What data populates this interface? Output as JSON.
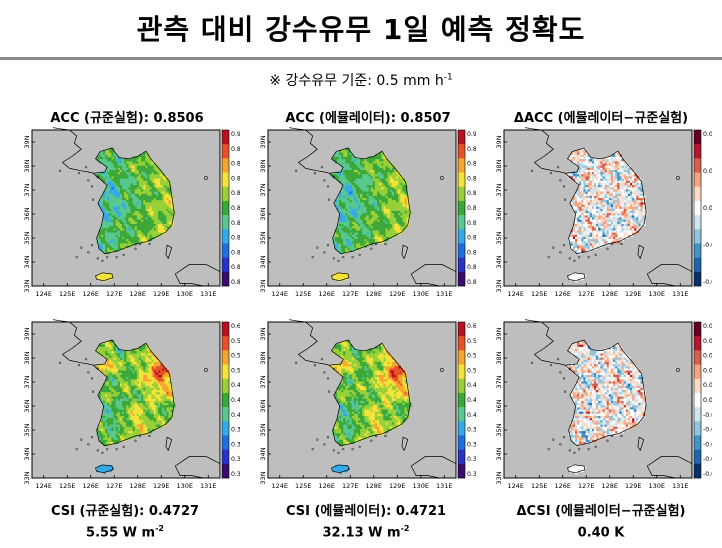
{
  "header": {
    "title": "관측 대비 강수유무 1일 예측 정확도",
    "note_prefix": "※ 강수유무 기준: 0.5 mm h",
    "note_exponent": "-1"
  },
  "colors": {
    "panel_background": "#bebebe",
    "land_outline": "#000000",
    "rule": "#8c8c8c"
  },
  "chart_data": [
    {
      "type": "heatmap",
      "id": "acc-control",
      "title": "ACC (규준실험): 0.8506",
      "metric": "ACC",
      "score": 0.8506,
      "x_ticks": [
        "124E",
        "125E",
        "126E",
        "127E",
        "128E",
        "129E",
        "130E",
        "131E"
      ],
      "y_ticks": [
        "33N",
        "34N",
        "35N",
        "36N",
        "37N",
        "38N",
        "39N"
      ],
      "colorbar": {
        "ticks": [
          "0.90",
          "0.89",
          "0.88",
          "0.87",
          "0.86",
          "0.85",
          "0.84",
          "0.83",
          "0.82",
          "0.81",
          "0.80"
        ],
        "min": 0.8,
        "max": 0.9,
        "palette": "rainbow"
      }
    },
    {
      "type": "heatmap",
      "id": "acc-emulator",
      "title": "ACC (에뮬레이터): 0.8507",
      "metric": "ACC",
      "score": 0.8507,
      "x_ticks": [
        "124E",
        "125E",
        "126E",
        "127E",
        "128E",
        "129E",
        "130E",
        "131E"
      ],
      "y_ticks": [
        "33N",
        "34N",
        "35N",
        "36N",
        "37N",
        "38N",
        "39N"
      ],
      "colorbar": {
        "ticks": [
          "0.90",
          "0.89",
          "0.88",
          "0.87",
          "0.86",
          "0.85",
          "0.84",
          "0.83",
          "0.82",
          "0.81",
          "0.80"
        ],
        "min": 0.8,
        "max": 0.9,
        "palette": "rainbow"
      }
    },
    {
      "type": "heatmap",
      "id": "acc-diff",
      "title": "ΔACC (에뮬레이터−규준실험)",
      "metric": "ΔACC",
      "x_ticks": [
        "124E",
        "125E",
        "126E",
        "127E",
        "128E",
        "129E",
        "130E",
        "131E"
      ],
      "y_ticks": [
        "33N",
        "34N",
        "35N",
        "36N",
        "37N",
        "38N",
        "39N"
      ],
      "colorbar": {
        "ticks": [
          "0.02",
          "0.01",
          "0.00",
          "-0.01",
          "-0.02"
        ],
        "min": -0.02,
        "max": 0.02,
        "palette": "diverging"
      }
    },
    {
      "type": "heatmap",
      "id": "csi-control",
      "title": "CSI (규준실험): 0.4727",
      "metric": "CSI",
      "score": 0.4727,
      "x_ticks": [
        "124E",
        "125E",
        "126E",
        "127E",
        "128E",
        "129E",
        "130E",
        "131E"
      ],
      "y_ticks": [
        "33N",
        "34N",
        "35N",
        "36N",
        "37N",
        "38N",
        "39N"
      ],
      "colorbar": {
        "ticks": [
          "0.60",
          "0.57",
          "0.54",
          "0.51",
          "0.48",
          "0.45",
          "0.42",
          "0.39",
          "0.36",
          "0.33",
          "0.30"
        ],
        "min": 0.3,
        "max": 0.6,
        "palette": "rainbow"
      }
    },
    {
      "type": "heatmap",
      "id": "csi-emulator",
      "title": "CSI (에뮬레이터): 0.4721",
      "metric": "CSI",
      "score": 0.4721,
      "x_ticks": [
        "124E",
        "125E",
        "126E",
        "127E",
        "128E",
        "129E",
        "130E",
        "131E"
      ],
      "y_ticks": [
        "33N",
        "34N",
        "35N",
        "36N",
        "37N",
        "38N",
        "39N"
      ],
      "colorbar": {
        "ticks": [
          "0.60",
          "0.57",
          "0.54",
          "0.51",
          "0.48",
          "0.45",
          "0.42",
          "0.39",
          "0.36",
          "0.33",
          "0.30"
        ],
        "min": 0.3,
        "max": 0.6,
        "palette": "rainbow"
      }
    },
    {
      "type": "heatmap",
      "id": "csi-diff",
      "title": "ΔCSI (에뮬레이터−규준실험)",
      "metric": "ΔCSI",
      "x_ticks": [
        "124E",
        "125E",
        "126E",
        "127E",
        "128E",
        "129E",
        "130E",
        "131E"
      ],
      "y_ticks": [
        "33N",
        "34N",
        "35N",
        "36N",
        "37N",
        "38N",
        "39N"
      ],
      "colorbar": {
        "ticks": [
          "0.05",
          "0.04",
          "0.03",
          "0.02",
          "0.01",
          "0.00",
          "-0.01",
          "-0.02",
          "-0.03",
          "-0.04",
          "-0.05"
        ],
        "min": -0.05,
        "max": 0.05,
        "palette": "diverging"
      }
    }
  ],
  "footer": [
    {
      "value": "5.55 W m",
      "exponent": "-2"
    },
    {
      "value": "32.13 W m",
      "exponent": "-2"
    },
    {
      "value": "0.40 K",
      "exponent": ""
    }
  ]
}
